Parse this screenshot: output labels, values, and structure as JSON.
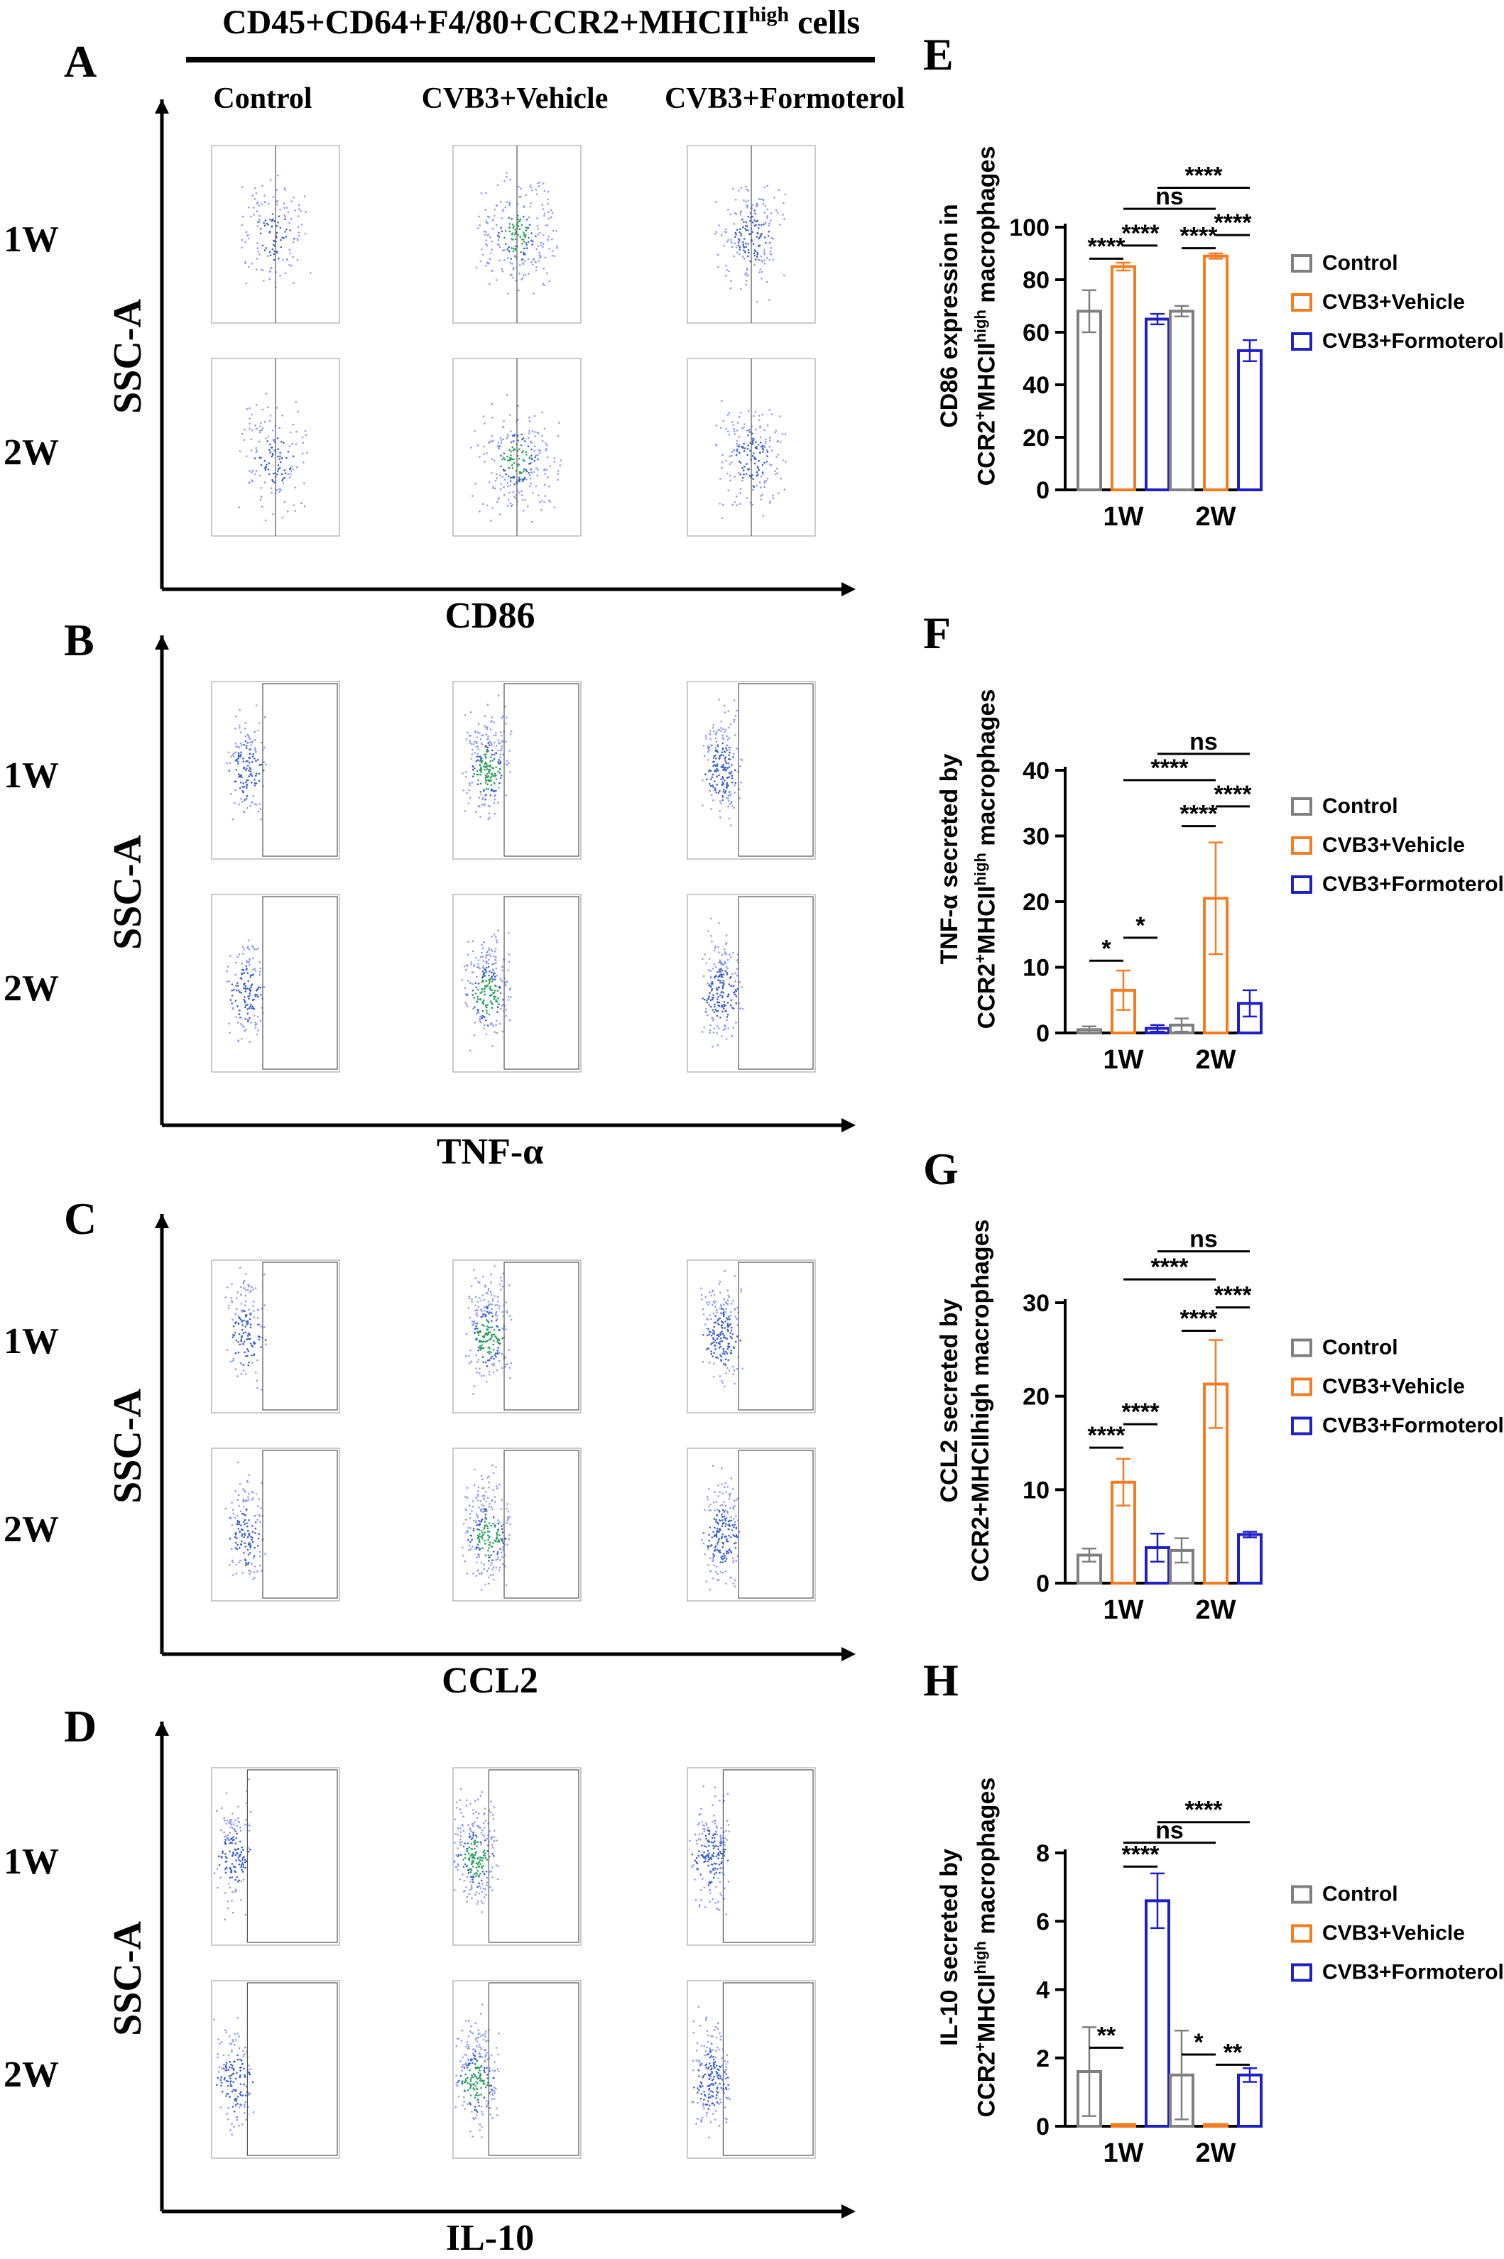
{
  "header": {
    "title_main": "CD45+CD64+F4/80+CCR2+MHCII",
    "title_sup": "high",
    "title_tail": " cells",
    "columns": [
      "Control",
      "CVB3+Vehicle",
      "CVB3+Formoterol"
    ]
  },
  "panels_left": [
    {
      "letter": "A",
      "row_labels": [
        "1W",
        "2W"
      ],
      "y_label": "SSC-A",
      "x_label": "CD86"
    },
    {
      "letter": "B",
      "row_labels": [
        "1W",
        "2W"
      ],
      "y_label": "SSC-A",
      "x_label": "TNF-α"
    },
    {
      "letter": "C",
      "row_labels": [
        "1W",
        "2W"
      ],
      "y_label": "SSC-A",
      "x_label": "CCL2"
    },
    {
      "letter": "D",
      "row_labels": [
        "1W",
        "2W"
      ],
      "y_label": "SSC-A",
      "x_label": "IL-10"
    }
  ],
  "colors": {
    "control": "#7f7f7f",
    "vehicle": "#f47c20",
    "formoterol": "#1f1fc8"
  },
  "chart_data": [
    {
      "letter": "E",
      "type": "bar",
      "ylabel_line1": "CD86 expression in",
      "ylabel_line2_pre": "CCR2",
      "ylabel_line2_sup1": "+",
      "ylabel_line2_mid": "MHCII",
      "ylabel_line2_sup2": "high",
      "ylabel_line2_post": " macrophages",
      "ylim": [
        0,
        100
      ],
      "yticks": [
        0,
        20,
        40,
        60,
        80,
        100
      ],
      "categories": [
        "1W",
        "2W"
      ],
      "series": [
        {
          "name": "Control",
          "values": [
            68,
            68
          ],
          "errors": [
            8,
            2
          ]
        },
        {
          "name": "CVB3+Vehicle",
          "values": [
            85,
            89
          ],
          "errors": [
            1.5,
            1
          ]
        },
        {
          "name": "CVB3+Formoterol",
          "values": [
            65,
            53
          ],
          "errors": [
            2,
            4
          ]
        }
      ],
      "significance": [
        {
          "label": "****",
          "from": [
            0,
            0
          ],
          "to": [
            0,
            1
          ],
          "level": 88
        },
        {
          "label": "****",
          "from": [
            0,
            1
          ],
          "to": [
            0,
            2
          ],
          "level": 93
        },
        {
          "label": "****",
          "from": [
            1,
            0
          ],
          "to": [
            1,
            1
          ],
          "level": 92
        },
        {
          "label": "****",
          "from": [
            1,
            1
          ],
          "to": [
            1,
            2
          ],
          "level": 97
        },
        {
          "label": "ns",
          "from": [
            0,
            1
          ],
          "to": [
            1,
            1
          ],
          "level": 107
        },
        {
          "label": "****",
          "from": [
            0,
            2
          ],
          "to": [
            1,
            2
          ],
          "level": 115
        }
      ]
    },
    {
      "letter": "F",
      "type": "bar",
      "ylabel_line1": "TNF-α secreted by",
      "ylabel_line2_pre": "CCR2",
      "ylabel_line2_sup1": "+",
      "ylabel_line2_mid": "MHCII",
      "ylabel_line2_sup2": "high",
      "ylabel_line2_post": " macrophages",
      "ylim": [
        0,
        40
      ],
      "yticks": [
        0,
        10,
        20,
        30,
        40
      ],
      "categories": [
        "1W",
        "2W"
      ],
      "series": [
        {
          "name": "Control",
          "values": [
            0.5,
            1.2
          ],
          "errors": [
            0.5,
            1
          ]
        },
        {
          "name": "CVB3+Vehicle",
          "values": [
            6.5,
            20.5
          ],
          "errors": [
            3,
            8.5
          ]
        },
        {
          "name": "CVB3+Formoterol",
          "values": [
            0.7,
            4.5
          ],
          "errors": [
            0.5,
            2
          ]
        }
      ],
      "significance": [
        {
          "label": "*",
          "from": [
            0,
            0
          ],
          "to": [
            0,
            1
          ],
          "level": 11
        },
        {
          "label": "*",
          "from": [
            0,
            1
          ],
          "to": [
            0,
            2
          ],
          "level": 14.5
        },
        {
          "label": "****",
          "from": [
            1,
            0
          ],
          "to": [
            1,
            1
          ],
          "level": 31.5
        },
        {
          "label": "****",
          "from": [
            1,
            1
          ],
          "to": [
            1,
            2
          ],
          "level": 34.5
        },
        {
          "label": "****",
          "from": [
            0,
            1
          ],
          "to": [
            1,
            1
          ],
          "level": 38.5
        },
        {
          "label": "ns",
          "from": [
            0,
            2
          ],
          "to": [
            1,
            2
          ],
          "level": 42.5
        }
      ]
    },
    {
      "letter": "G",
      "type": "bar",
      "ylabel_line1": "CCL2 secreted by",
      "ylabel_line2_pre": "CCR2+MHCIIhigh macrophages",
      "ylabel_line2_sup1": "",
      "ylabel_line2_mid": "",
      "ylabel_line2_sup2": "",
      "ylabel_line2_post": "",
      "ylim": [
        0,
        30
      ],
      "yticks": [
        0,
        10,
        20,
        30
      ],
      "categories": [
        "1W",
        "2W"
      ],
      "series": [
        {
          "name": "Control",
          "values": [
            3,
            3.5
          ],
          "errors": [
            0.7,
            1.3
          ]
        },
        {
          "name": "CVB3+Vehicle",
          "values": [
            10.8,
            21.3
          ],
          "errors": [
            2.5,
            4.7
          ]
        },
        {
          "name": "CVB3+Formoterol",
          "values": [
            3.8,
            5.2
          ],
          "errors": [
            1.5,
            0.3
          ]
        }
      ],
      "significance": [
        {
          "label": "****",
          "from": [
            0,
            0
          ],
          "to": [
            0,
            1
          ],
          "level": 14.5
        },
        {
          "label": "****",
          "from": [
            0,
            1
          ],
          "to": [
            0,
            2
          ],
          "level": 17
        },
        {
          "label": "****",
          "from": [
            1,
            0
          ],
          "to": [
            1,
            1
          ],
          "level": 27
        },
        {
          "label": "****",
          "from": [
            1,
            1
          ],
          "to": [
            1,
            2
          ],
          "level": 29.5
        },
        {
          "label": "****",
          "from": [
            0,
            1
          ],
          "to": [
            1,
            1
          ],
          "level": 32.5
        },
        {
          "label": "ns",
          "from": [
            0,
            2
          ],
          "to": [
            1,
            2
          ],
          "level": 35.5
        }
      ]
    },
    {
      "letter": "H",
      "type": "bar",
      "ylabel_line1": "IL-10 secreted by",
      "ylabel_line2_pre": "CCR2",
      "ylabel_line2_sup1": "+",
      "ylabel_line2_mid": "MHCII",
      "ylabel_line2_sup2": "high",
      "ylabel_line2_post": " macrophages",
      "ylim": [
        0,
        8
      ],
      "yticks": [
        0,
        2,
        4,
        6,
        8
      ],
      "categories": [
        "1W",
        "2W"
      ],
      "series": [
        {
          "name": "Control",
          "values": [
            1.6,
            1.5
          ],
          "errors": [
            1.3,
            1.3
          ]
        },
        {
          "name": "CVB3+Vehicle",
          "values": [
            0.05,
            0.05
          ],
          "errors": [
            0,
            0
          ]
        },
        {
          "name": "CVB3+Formoterol",
          "values": [
            6.6,
            1.5
          ],
          "errors": [
            0.8,
            0.2
          ]
        }
      ],
      "significance": [
        {
          "label": "**",
          "from": [
            0,
            0
          ],
          "to": [
            0,
            1
          ],
          "level": 2.3
        },
        {
          "label": "****",
          "from": [
            0,
            1
          ],
          "to": [
            0,
            2
          ],
          "level": 7.6
        },
        {
          "label": "*",
          "from": [
            1,
            0
          ],
          "to": [
            1,
            1
          ],
          "level": 2.1
        },
        {
          "label": "**",
          "from": [
            1,
            1
          ],
          "to": [
            1,
            2
          ],
          "level": 1.8
        },
        {
          "label": "ns",
          "from": [
            0,
            1
          ],
          "to": [
            1,
            1
          ],
          "level": 8.3
        },
        {
          "label": "****",
          "from": [
            0,
            2
          ],
          "to": [
            1,
            2
          ],
          "level": 8.9
        }
      ]
    }
  ]
}
